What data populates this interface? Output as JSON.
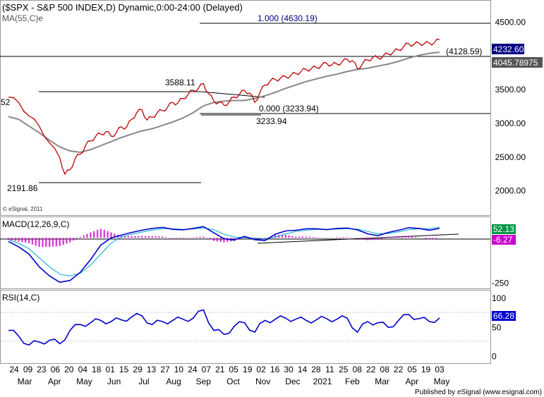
{
  "header": {
    "title": "($SPX - S&P 500 INDEX,D) Dynamic,0:00-24:00 (Delayed)",
    "ma_label": "MA(55,C)e"
  },
  "footer": {
    "copyright": "© eSignal, 2011",
    "published": "Published by eSignal (www.esignal.com)"
  },
  "colors": {
    "price": "#e00000",
    "ma": "#888888",
    "macd": "#0000cc",
    "signal": "#00aacc",
    "hist": "#cc00cc",
    "rsi": "#0000cc",
    "levels": "#000080",
    "grid": "#aaaaaa"
  },
  "chart_data": [
    {
      "type": "line",
      "name": "price",
      "title": "($SPX - S&P 500 INDEX,D) Dynamic,0:00-24:00 (Delayed)",
      "ylim": [
        1650,
        4800
      ],
      "yticks": [
        "4500.00",
        "3500.00",
        "3000.00",
        "2500.00",
        "2000.00"
      ],
      "ytick_values": [
        4500,
        3500,
        3000,
        2500,
        2000
      ],
      "xticks": [
        "24",
        "09",
        "23",
        "06",
        "20",
        "04",
        "18",
        "01",
        "15",
        "29",
        "13",
        "27",
        "10",
        "24",
        "07",
        "21",
        "05",
        "19",
        "02",
        "16",
        "30",
        "14",
        "28",
        "11",
        "25",
        "08",
        "22",
        "08",
        "22",
        "05",
        "19",
        "03"
      ],
      "month_labels": [
        "Mar",
        "Apr",
        "May",
        "Jun",
        "Jul",
        "Aug",
        "Sep",
        "Oct",
        "Nov",
        "Dec",
        "2021",
        "Feb",
        "Mar",
        "Apr",
        "May"
      ],
      "price_series": [
        [
          0,
          3380
        ],
        [
          1,
          3300
        ],
        [
          2,
          3100
        ],
        [
          3,
          2950
        ],
        [
          4,
          2700
        ],
        [
          5,
          2480
        ],
        [
          5.5,
          2237
        ],
        [
          6,
          2300
        ],
        [
          6.5,
          2470
        ],
        [
          7,
          2530
        ],
        [
          7.5,
          2660
        ],
        [
          8,
          2730
        ],
        [
          8.5,
          2800
        ],
        [
          9,
          2830
        ],
        [
          9.5,
          2870
        ],
        [
          10,
          2800
        ],
        [
          10.5,
          2850
        ],
        [
          11,
          2940
        ],
        [
          11.5,
          2930
        ],
        [
          12,
          3050
        ],
        [
          12.5,
          3150
        ],
        [
          13,
          3190
        ],
        [
          13.5,
          3040
        ],
        [
          14,
          3080
        ],
        [
          14.5,
          3150
        ],
        [
          15,
          3180
        ],
        [
          15.5,
          3230
        ],
        [
          16,
          3300
        ],
        [
          16.5,
          3290
        ],
        [
          17,
          3360
        ],
        [
          17.5,
          3420
        ],
        [
          18,
          3480
        ],
        [
          18.5,
          3508
        ],
        [
          19,
          3580
        ],
        [
          19.5,
          3430
        ],
        [
          20,
          3320
        ],
        [
          20.5,
          3300
        ],
        [
          21,
          3260
        ],
        [
          21.5,
          3310
        ],
        [
          22,
          3380
        ],
        [
          22.5,
          3420
        ],
        [
          23,
          3480
        ],
        [
          23.5,
          3440
        ],
        [
          24,
          3300
        ],
        [
          24.5,
          3450
        ],
        [
          25,
          3560
        ],
        [
          25.5,
          3620
        ],
        [
          26,
          3640
        ],
        [
          26.5,
          3660
        ],
        [
          27,
          3680
        ],
        [
          27.5,
          3700
        ],
        [
          28,
          3730
        ],
        [
          28.5,
          3760
        ],
        [
          29,
          3790
        ],
        [
          29.5,
          3800
        ],
        [
          30,
          3820
        ],
        [
          30.5,
          3850
        ],
        [
          31,
          3880
        ],
        [
          31.5,
          3860
        ],
        [
          32,
          3870
        ],
        [
          32.5,
          3900
        ],
        [
          33,
          3940
        ],
        [
          33.5,
          3920
        ],
        [
          34,
          3800
        ],
        [
          34.5,
          3880
        ],
        [
          35,
          3930
        ],
        [
          35.5,
          3970
        ],
        [
          36,
          3960
        ],
        [
          36.5,
          3990
        ],
        [
          37,
          4020
        ],
        [
          37.5,
          4050
        ],
        [
          38,
          4080
        ],
        [
          38.5,
          4130
        ],
        [
          39,
          4170
        ],
        [
          39.5,
          4160
        ],
        [
          40,
          4180
        ],
        [
          40.5,
          4170
        ],
        [
          41,
          4180
        ],
        [
          41.5,
          4190
        ],
        [
          42,
          4232.6
        ]
      ],
      "ma_series": [
        [
          0,
          3090
        ],
        [
          1,
          3050
        ],
        [
          2,
          2950
        ],
        [
          3,
          2850
        ],
        [
          4,
          2740
        ],
        [
          5,
          2640
        ],
        [
          6,
          2580
        ],
        [
          7,
          2560
        ],
        [
          8,
          2600
        ],
        [
          9,
          2660
        ],
        [
          10,
          2720
        ],
        [
          11,
          2780
        ],
        [
          12,
          2830
        ],
        [
          13,
          2880
        ],
        [
          14,
          2910
        ],
        [
          15,
          2960
        ],
        [
          16,
          3010
        ],
        [
          17,
          3070
        ],
        [
          18,
          3150
        ],
        [
          19,
          3250
        ],
        [
          20,
          3300
        ],
        [
          21,
          3320
        ],
        [
          22,
          3330
        ],
        [
          23,
          3330
        ],
        [
          24,
          3360
        ],
        [
          25,
          3400
        ],
        [
          26,
          3450
        ],
        [
          27,
          3510
        ],
        [
          28,
          3560
        ],
        [
          29,
          3610
        ],
        [
          30,
          3650
        ],
        [
          31,
          3690
        ],
        [
          32,
          3720
        ],
        [
          33,
          3760
        ],
        [
          34,
          3790
        ],
        [
          35,
          3810
        ],
        [
          36,
          3840
        ],
        [
          37,
          3870
        ],
        [
          38,
          3910
        ],
        [
          39,
          3960
        ],
        [
          40,
          4000
        ],
        [
          41,
          4030
        ],
        [
          42,
          4045.79
        ]
      ],
      "levels": [
        {
          "label": "1.000 (4630.19)",
          "value": 4630.19
        },
        {
          "label": "(4128.59)",
          "value": 4128.59
        },
        {
          "label": "0.000 (3233.94)",
          "value": 3233.94
        }
      ],
      "annotations": [
        {
          "label": "3588.11",
          "value": 3588.11
        },
        {
          "label": "3233.94",
          "value": 3233.94
        },
        {
          "label": "2191.86",
          "value": 2191.86
        },
        {
          "label": "52",
          "value": 3380
        }
      ],
      "last_price": "4232.60",
      "last_ma": "4045.78975"
    },
    {
      "type": "line",
      "name": "macd",
      "title": "MACD(12,26,9,C)",
      "ylim": [
        -275,
        110
      ],
      "yticks": [
        "-250"
      ],
      "ytick_values": [
        -250
      ],
      "macd_series": [
        [
          0,
          -20
        ],
        [
          1,
          -50
        ],
        [
          2,
          -90
        ],
        [
          3,
          -160
        ],
        [
          4,
          -210
        ],
        [
          5,
          -245
        ],
        [
          6,
          -235
        ],
        [
          7,
          -190
        ],
        [
          8,
          -120
        ],
        [
          9,
          -40
        ],
        [
          10,
          0
        ],
        [
          11,
          15
        ],
        [
          12,
          30
        ],
        [
          13,
          42
        ],
        [
          14,
          52
        ],
        [
          15,
          58
        ],
        [
          16,
          47
        ],
        [
          17,
          44
        ],
        [
          18,
          52
        ],
        [
          19,
          62
        ],
        [
          20,
          28
        ],
        [
          21,
          -5
        ],
        [
          22,
          -12
        ],
        [
          23,
          8
        ],
        [
          24,
          -10
        ],
        [
          25,
          -15
        ],
        [
          26,
          20
        ],
        [
          27,
          38
        ],
        [
          28,
          42
        ],
        [
          29,
          50
        ],
        [
          30,
          50
        ],
        [
          31,
          45
        ],
        [
          32,
          52
        ],
        [
          33,
          54
        ],
        [
          34,
          44
        ],
        [
          35,
          22
        ],
        [
          36,
          12
        ],
        [
          37,
          30
        ],
        [
          38,
          42
        ],
        [
          39,
          56
        ],
        [
          40,
          52
        ],
        [
          41,
          42
        ],
        [
          42,
          52.13
        ]
      ],
      "signal_series": [
        [
          0,
          -10
        ],
        [
          1,
          -30
        ],
        [
          2,
          -60
        ],
        [
          3,
          -110
        ],
        [
          4,
          -160
        ],
        [
          5,
          -200
        ],
        [
          6,
          -210
        ],
        [
          7,
          -195
        ],
        [
          8,
          -150
        ],
        [
          9,
          -90
        ],
        [
          10,
          -30
        ],
        [
          11,
          5
        ],
        [
          12,
          20
        ],
        [
          13,
          32
        ],
        [
          14,
          42
        ],
        [
          15,
          50
        ],
        [
          16,
          50
        ],
        [
          17,
          47
        ],
        [
          18,
          49
        ],
        [
          19,
          55
        ],
        [
          20,
          45
        ],
        [
          21,
          20
        ],
        [
          22,
          5
        ],
        [
          23,
          0
        ],
        [
          24,
          -2
        ],
        [
          25,
          -5
        ],
        [
          26,
          5
        ],
        [
          27,
          22
        ],
        [
          28,
          35
        ],
        [
          29,
          42
        ],
        [
          30,
          47
        ],
        [
          31,
          47
        ],
        [
          32,
          48
        ],
        [
          33,
          50
        ],
        [
          34,
          48
        ],
        [
          35,
          35
        ],
        [
          36,
          22
        ],
        [
          37,
          24
        ],
        [
          38,
          33
        ],
        [
          39,
          45
        ],
        [
          40,
          50
        ],
        [
          41,
          50
        ],
        [
          42,
          58.4
        ]
      ],
      "hist_series": [
        [
          0,
          -10
        ],
        [
          1,
          -20
        ],
        [
          2,
          -30
        ],
        [
          3,
          -50
        ],
        [
          4,
          -50
        ],
        [
          5,
          -45
        ],
        [
          6,
          -25
        ],
        [
          7,
          5
        ],
        [
          8,
          30
        ],
        [
          9,
          50
        ],
        [
          10,
          30
        ],
        [
          11,
          10
        ],
        [
          12,
          10
        ],
        [
          13,
          10
        ],
        [
          14,
          10
        ],
        [
          15,
          8
        ],
        [
          16,
          -3
        ],
        [
          17,
          -3
        ],
        [
          18,
          3
        ],
        [
          19,
          7
        ],
        [
          20,
          -17
        ],
        [
          21,
          -25
        ],
        [
          22,
          -17
        ],
        [
          23,
          8
        ],
        [
          24,
          -8
        ],
        [
          25,
          -10
        ],
        [
          26,
          15
        ],
        [
          27,
          16
        ],
        [
          28,
          7
        ],
        [
          29,
          8
        ],
        [
          30,
          3
        ],
        [
          31,
          -2
        ],
        [
          32,
          4
        ],
        [
          33,
          4
        ],
        [
          34,
          -4
        ],
        [
          35,
          -13
        ],
        [
          36,
          -10
        ],
        [
          37,
          6
        ],
        [
          38,
          9
        ],
        [
          39,
          11
        ],
        [
          40,
          2
        ],
        [
          41,
          -8
        ],
        [
          42,
          -6.27
        ]
      ],
      "last_macd": "52.13",
      "last_hist": "-6.27"
    },
    {
      "type": "line",
      "name": "rsi",
      "title": "RSI(14,C)",
      "ylim": [
        -10,
        112
      ],
      "yticks": [
        "100",
        "50",
        "0"
      ],
      "ytick_values": [
        100,
        50,
        0
      ],
      "rsi_series": [
        [
          0,
          45
        ],
        [
          1,
          35
        ],
        [
          2,
          20
        ],
        [
          3,
          25
        ],
        [
          4,
          28
        ],
        [
          5,
          22
        ],
        [
          6,
          45
        ],
        [
          7,
          55
        ],
        [
          8,
          58
        ],
        [
          9,
          62
        ],
        [
          10,
          60
        ],
        [
          11,
          63
        ],
        [
          12,
          68
        ],
        [
          13,
          70
        ],
        [
          14,
          55
        ],
        [
          15,
          60
        ],
        [
          16,
          62
        ],
        [
          17,
          64
        ],
        [
          18,
          66
        ],
        [
          19,
          80
        ],
        [
          20,
          45
        ],
        [
          21,
          38
        ],
        [
          22,
          52
        ],
        [
          23,
          58
        ],
        [
          24,
          42
        ],
        [
          25,
          62
        ],
        [
          26,
          64
        ],
        [
          27,
          66
        ],
        [
          28,
          64
        ],
        [
          29,
          62
        ],
        [
          30,
          63
        ],
        [
          31,
          65
        ],
        [
          32,
          64
        ],
        [
          33,
          66
        ],
        [
          34,
          42
        ],
        [
          35,
          60
        ],
        [
          36,
          58
        ],
        [
          37,
          50
        ],
        [
          38,
          62
        ],
        [
          39,
          72
        ],
        [
          40,
          65
        ],
        [
          41,
          60
        ],
        [
          42,
          66.28
        ]
      ],
      "last_rsi": "66.28"
    }
  ]
}
